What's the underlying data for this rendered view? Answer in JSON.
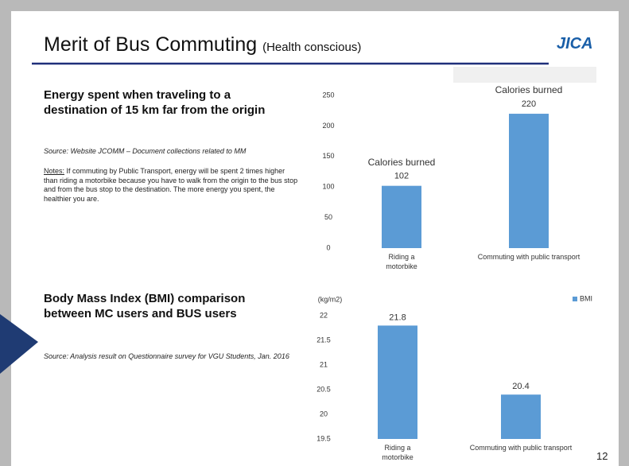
{
  "title": "Merit of Bus Commuting",
  "subtitle": "(Health conscious)",
  "logo": "JICA",
  "page_number": "12",
  "sections": [
    {
      "heading": "Energy spent when traveling to a destination of 15 km far from the origin",
      "source": "Source: Website JCOMM – Document collections related to MM",
      "notes_label": "Notes:",
      "notes": "If commuting by Public Transport, energy will be spent 2 times higher than riding a motorbike because you have to walk from the origin to the bus stop and from the bus stop to the destination. The more energy you spent, the healthier you are."
    },
    {
      "heading": "Body Mass Index (BMI) comparison between MC users and BUS users",
      "source": "Source: Analysis result on Questionnaire survey for VGU Students, Jan. 2016"
    }
  ],
  "chart_data": [
    {
      "type": "bar",
      "categories": [
        "Riding a motorbike",
        "Commuting with public transport"
      ],
      "values": [
        102,
        220
      ],
      "annotations": [
        "Calories burned",
        "Calories burned"
      ],
      "color": "#5b9bd5",
      "ylim": [
        0,
        250
      ],
      "yticks": [
        0,
        50,
        100,
        150,
        200,
        250
      ]
    },
    {
      "type": "bar",
      "ylabel": "(kg/m2)",
      "categories": [
        "Riding a motorbike",
        "Commuting with public transport"
      ],
      "series": [
        {
          "name": "BMI",
          "color": "#5b9bd5",
          "values": [
            21.8,
            20.4
          ]
        }
      ],
      "ylim": [
        19.5,
        22
      ],
      "yticks": [
        19.5,
        20,
        20.5,
        21,
        21.5,
        22
      ],
      "legend": "top-right"
    }
  ]
}
